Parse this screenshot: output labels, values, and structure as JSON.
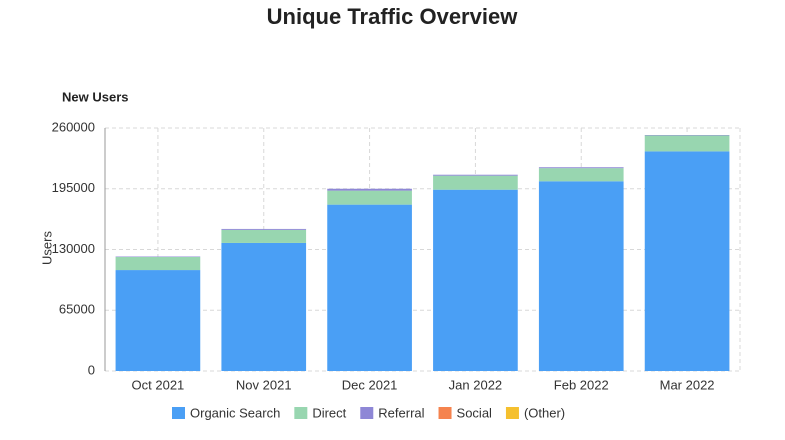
{
  "chart_data": {
    "type": "stacked_bar",
    "title": "Unique Traffic Overview",
    "subtitle": "New Users",
    "y_label": "Users",
    "categories": [
      "Oct 2021",
      "Nov 2021",
      "Dec 2021",
      "Jan 2022",
      "Feb 2022",
      "Mar 2022"
    ],
    "series": [
      {
        "name": "Organic Search",
        "color": "#4a9ff5",
        "values": [
          108000,
          137000,
          178000,
          194000,
          203000,
          235000
        ]
      },
      {
        "name": "Direct",
        "color": "#98d6b0",
        "values": [
          14000,
          14000,
          15000,
          15000,
          14000,
          17000
        ]
      },
      {
        "name": "Referral",
        "color": "#8e87d6",
        "values": [
          500,
          1000,
          2000,
          1000,
          1000,
          500
        ]
      },
      {
        "name": "Social",
        "color": "#f5834e",
        "values": [
          0,
          0,
          0,
          0,
          0,
          0
        ]
      },
      {
        "name": "(Other)",
        "color": "#f5c02e",
        "values": [
          0,
          0,
          0,
          0,
          0,
          0
        ]
      }
    ],
    "ylim": [
      0,
      260000
    ],
    "yticks": [
      0,
      65000,
      130000,
      195000,
      260000
    ],
    "grid": true
  }
}
